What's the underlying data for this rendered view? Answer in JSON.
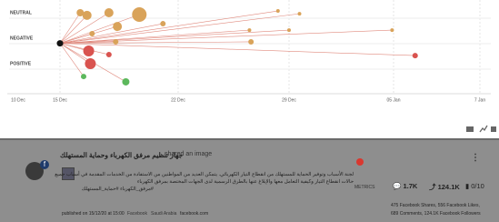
{
  "chart": {
    "yticks": [
      {
        "value": 1,
        "label": "NEUTRAL"
      },
      {
        "value": 0,
        "label": "NEGATIVE"
      },
      {
        "value": -1,
        "label": "POSITIVE"
      }
    ],
    "ylim": [
      -2.14,
      1.5
    ],
    "xticks": [
      {
        "value": 0,
        "label": "10 Dec"
      },
      {
        "value": 5,
        "label": "15 Dec"
      },
      {
        "value": 12,
        "label": "22 Dec"
      },
      {
        "value": 19,
        "label": "29 Dec"
      },
      {
        "value": 26,
        "label": "05 Jan"
      },
      {
        "value": 28,
        "label": "7 Jan"
      }
    ],
    "origin": {
      "x": 5,
      "y": -0.2
    },
    "line_color": "#e08a7e",
    "points": [
      {
        "x": 6.2,
        "y": 1.0,
        "size": 4,
        "color": "#d9a35a"
      },
      {
        "x": 6.6,
        "y": 0.9,
        "size": 5,
        "color": "#d9a35a"
      },
      {
        "x": 7.9,
        "y": 1.0,
        "size": 5,
        "color": "#d9a35a"
      },
      {
        "x": 9.7,
        "y": 0.93,
        "size": 8,
        "color": "#d9a35a"
      },
      {
        "x": 8.4,
        "y": 0.46,
        "size": 5,
        "color": "#d9a35a"
      },
      {
        "x": 11.1,
        "y": 0.57,
        "size": 3,
        "color": "#d9a35a"
      },
      {
        "x": 18.3,
        "y": 1.07,
        "size": 2,
        "color": "#d9a35a"
      },
      {
        "x": 19.7,
        "y": 0.96,
        "size": 2,
        "color": "#d9a35a"
      },
      {
        "x": 19,
        "y": 0.32,
        "size": 2,
        "color": "#d9a35a"
      },
      {
        "x": 25.9,
        "y": 0.32,
        "size": 2,
        "color": "#d9a35a"
      },
      {
        "x": 16.5,
        "y": 0.32,
        "size": 2,
        "color": "#d9a35a"
      },
      {
        "x": 16.6,
        "y": -0.14,
        "size": 3,
        "color": "#d9a35a"
      },
      {
        "x": 8.3,
        "y": -0.14,
        "size": 3,
        "color": "#d9a35a"
      },
      {
        "x": 6.9,
        "y": 0.18,
        "size": 3,
        "color": "#d9a35a"
      },
      {
        "x": 6.7,
        "y": -0.5,
        "size": 6,
        "color": "#d9534f"
      },
      {
        "x": 6.8,
        "y": -1,
        "size": 6,
        "color": "#d9534f"
      },
      {
        "x": 7.9,
        "y": -0.64,
        "size": 3,
        "color": "#d9534f"
      },
      {
        "x": 26.5,
        "y": -0.68,
        "size": 3,
        "color": "#d9534f"
      },
      {
        "x": 6.4,
        "y": -1.5,
        "size": 3,
        "color": "#5cb85c"
      },
      {
        "x": 8.9,
        "y": -1.71,
        "size": 4,
        "color": "#5cb85c"
      }
    ]
  },
  "post": {
    "author": "جهاز تنظيم مرفق الكهرباء وحماية المستهلك",
    "action": "shared an image",
    "text": [
      "لجنة الأسباب وتوفير الحماية للمستهلك من انقطاع التيار الكهربائي. يتمكن العديد من المواطنين من الاستفادة من الخدمات المقدمة في أسباب جميع",
      "حالات انقطاع التيار وكيفية التعامل معها والإبلاغ عنها بالطرق الرسمية لدى الجهات المختصة بمرفق الكهرباء",
      "#مرفق_الكهرباء #حماية_المستهلك"
    ],
    "published": "published on 15/12/20 at 15:00",
    "source": "Facebook",
    "country": "Saudi Arabia",
    "site": "facebook.com",
    "metrics_label": "METRICS",
    "comments": "1.7K",
    "followers": "124.1K",
    "score": "0/10",
    "summary1": "475 Facebook Shares, 556 Facebook Likes,",
    "summary2": "689 Comments, 124.1K Facebook Followers"
  }
}
